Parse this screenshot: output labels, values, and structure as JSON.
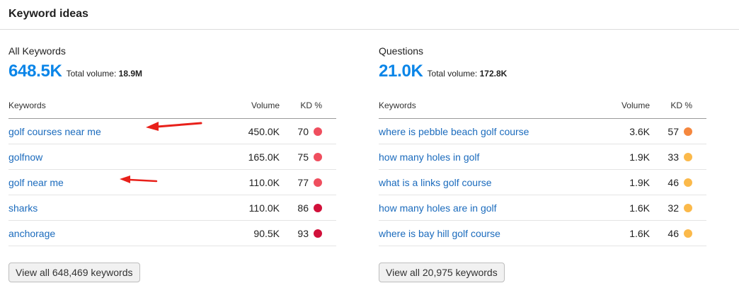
{
  "header": {
    "title": "Keyword ideas"
  },
  "panels": [
    {
      "title": "All Keywords",
      "count": "648.5K",
      "total_label": "Total volume:",
      "total_value": "18.9M",
      "columns": {
        "keywords": "Keywords",
        "volume": "Volume",
        "kd": "KD %"
      },
      "rows": [
        {
          "keyword": "golf courses near me",
          "volume": "450.0K",
          "kd": "70",
          "kd_color": "#ef4e5e"
        },
        {
          "keyword": "golfnow",
          "volume": "165.0K",
          "kd": "75",
          "kd_color": "#ef4e5e"
        },
        {
          "keyword": "golf near me",
          "volume": "110.0K",
          "kd": "77",
          "kd_color": "#ef4e5e"
        },
        {
          "keyword": "sharks",
          "volume": "110.0K",
          "kd": "86",
          "kd_color": "#d1103a"
        },
        {
          "keyword": "anchorage",
          "volume": "90.5K",
          "kd": "93",
          "kd_color": "#d1103a"
        }
      ],
      "button_label": "View all 648,469 keywords"
    },
    {
      "title": "Questions",
      "count": "21.0K",
      "total_label": "Total volume:",
      "total_value": "172.8K",
      "columns": {
        "keywords": "Keywords",
        "volume": "Volume",
        "kd": "KD %"
      },
      "rows": [
        {
          "keyword": "where is pebble beach golf course",
          "volume": "3.6K",
          "kd": "57",
          "kd_color": "#f5873e"
        },
        {
          "keyword": "how many holes in golf",
          "volume": "1.9K",
          "kd": "33",
          "kd_color": "#fbb94a"
        },
        {
          "keyword": "what is a links golf course",
          "volume": "1.9K",
          "kd": "46",
          "kd_color": "#fbb94a"
        },
        {
          "keyword": "how many holes are in golf",
          "volume": "1.6K",
          "kd": "32",
          "kd_color": "#fbb94a"
        },
        {
          "keyword": "where is bay hill golf course",
          "volume": "1.6K",
          "kd": "46",
          "kd_color": "#fbb94a"
        }
      ],
      "button_label": "View all 20,975 keywords"
    }
  ],
  "annotations": {
    "arrow_color": "#e8201a"
  }
}
